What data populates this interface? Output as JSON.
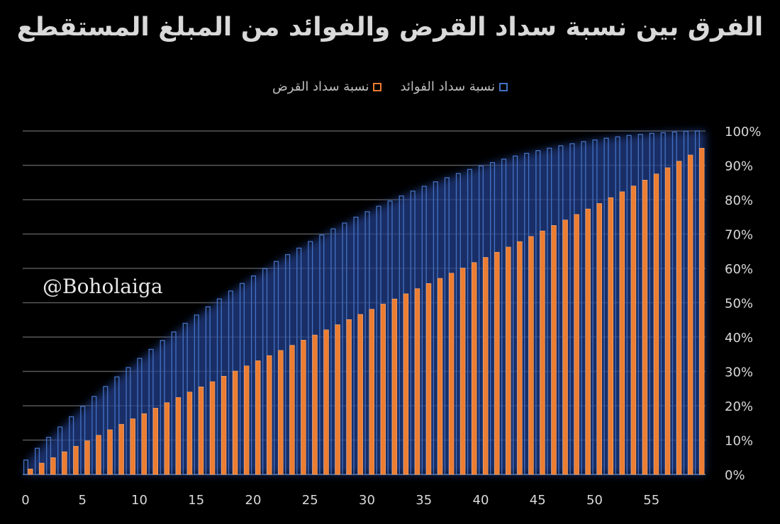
{
  "title": "الفرق بين نسبة سداد القرض والفوائد من المبلغ المستقطع",
  "watermark": "@Boholaiga",
  "chart_data": {
    "type": "bar",
    "title": "الفرق بين نسبة سداد القرض والفوائد من المبلغ المستقطع",
    "legend_position": "top-center",
    "y_axis_side": "right",
    "ylim": [
      0,
      1
    ],
    "y_ticks": [
      "0%",
      "10%",
      "20%",
      "30%",
      "40%",
      "50%",
      "60%",
      "70%",
      "80%",
      "90%",
      "100%"
    ],
    "x_ticks": [
      "0",
      "5",
      "10",
      "15",
      "20",
      "25",
      "30",
      "35",
      "40",
      "45",
      "50",
      "55"
    ],
    "x": [
      0,
      1,
      2,
      3,
      4,
      5,
      6,
      7,
      8,
      9,
      10,
      11,
      12,
      13,
      14,
      15,
      16,
      17,
      18,
      19,
      20,
      21,
      22,
      23,
      24,
      25,
      26,
      27,
      28,
      29,
      30,
      31,
      32,
      33,
      34,
      35,
      36,
      37,
      38,
      39,
      40,
      41,
      42,
      43,
      44,
      45,
      46,
      47,
      48,
      49,
      50,
      51,
      52,
      53,
      54,
      55,
      56,
      57,
      58,
      59
    ],
    "series": [
      {
        "name": "نسبة سداد الفوائد",
        "color": "#4472c4",
        "style": "outline",
        "values": [
          0.042,
          0.076,
          0.108,
          0.138,
          0.168,
          0.198,
          0.227,
          0.256,
          0.284,
          0.311,
          0.338,
          0.364,
          0.39,
          0.415,
          0.44,
          0.464,
          0.488,
          0.511,
          0.534,
          0.556,
          0.578,
          0.599,
          0.62,
          0.64,
          0.659,
          0.678,
          0.697,
          0.715,
          0.732,
          0.749,
          0.765,
          0.781,
          0.796,
          0.811,
          0.825,
          0.839,
          0.852,
          0.864,
          0.876,
          0.888,
          0.898,
          0.908,
          0.918,
          0.927,
          0.935,
          0.943,
          0.95,
          0.957,
          0.963,
          0.969,
          0.974,
          0.979,
          0.983,
          0.987,
          0.99,
          0.993,
          0.995,
          0.997,
          0.999,
          1.0
        ]
      },
      {
        "name": "نسبة سداد القرض",
        "color": "#ed7d31",
        "style": "filled",
        "values": [
          0.016,
          0.033,
          0.049,
          0.066,
          0.082,
          0.098,
          0.114,
          0.13,
          0.146,
          0.162,
          0.177,
          0.193,
          0.209,
          0.224,
          0.24,
          0.255,
          0.27,
          0.286,
          0.301,
          0.316,
          0.331,
          0.346,
          0.361,
          0.376,
          0.391,
          0.406,
          0.421,
          0.436,
          0.451,
          0.466,
          0.481,
          0.496,
          0.511,
          0.526,
          0.541,
          0.556,
          0.571,
          0.586,
          0.601,
          0.617,
          0.632,
          0.647,
          0.662,
          0.678,
          0.693,
          0.709,
          0.725,
          0.741,
          0.757,
          0.773,
          0.789,
          0.806,
          0.823,
          0.84,
          0.857,
          0.875,
          0.893,
          0.912,
          0.93,
          0.95
        ]
      }
    ]
  }
}
